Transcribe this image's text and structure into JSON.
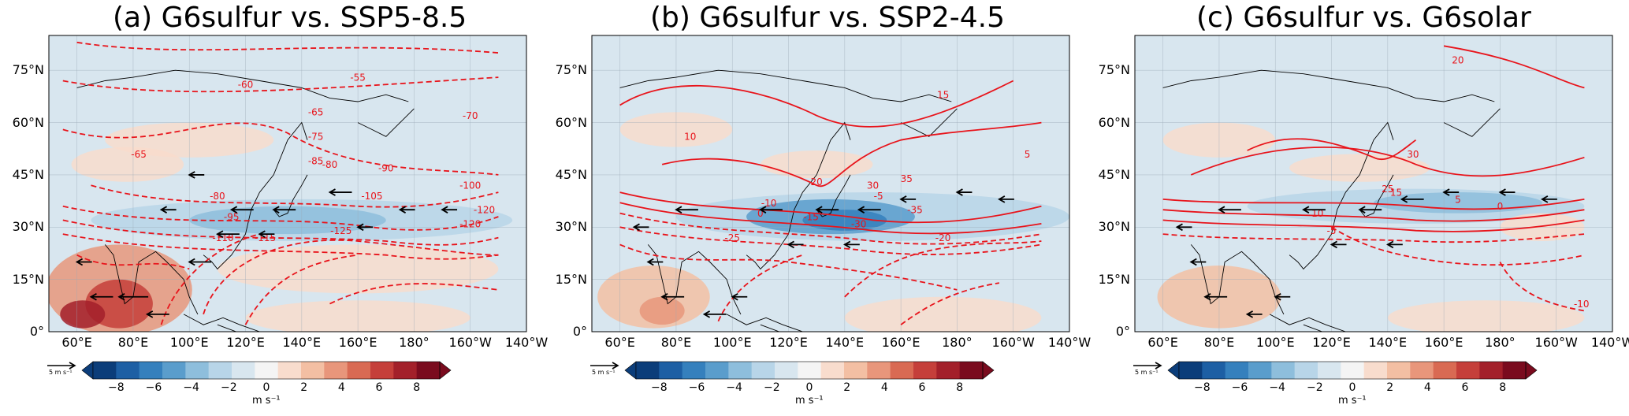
{
  "panels": [
    {
      "id": "a",
      "title": "(a) G6sulfur vs. SSP5-8.5",
      "contour_labels": [
        "-55",
        "-60",
        "-65",
        "-70",
        "-65",
        "-75",
        "-80",
        "-90",
        "-85",
        "-100",
        "-105",
        "-80",
        "-95",
        "-110",
        "-115",
        "-120",
        "-125",
        "-120"
      ]
    },
    {
      "id": "b",
      "title": "(b) G6sulfur vs. SSP2-4.5",
      "contour_labels": [
        "15",
        "10",
        "5",
        "20",
        "30",
        "35",
        "0",
        "-5",
        "-15",
        "-10",
        "-20",
        "-25",
        "-30",
        "-35"
      ]
    },
    {
      "id": "c",
      "title": "(c) G6sulfur vs. G6solar",
      "contour_labels": [
        "20",
        "25",
        "30",
        "15",
        "10",
        "5",
        "0",
        "-5",
        "-10"
      ]
    }
  ],
  "axes": {
    "lat_ticks": [
      "75°N",
      "60°N",
      "45°N",
      "30°N",
      "15°N",
      "0°"
    ],
    "lon_ticks": [
      "60°E",
      "80°E",
      "100°E",
      "120°E",
      "140°E",
      "160°E",
      "180°",
      "160°W",
      "140°W"
    ]
  },
  "colorbar": {
    "ticks": [
      "−8",
      "−6",
      "−4",
      "−2",
      "0",
      "2",
      "4",
      "6",
      "8"
    ],
    "unit": "m s⁻¹",
    "vector_ref": "5 m s⁻¹",
    "colors": [
      "#0b3d7a",
      "#1d5fa4",
      "#3580bd",
      "#5a9dcc",
      "#8ebedc",
      "#b8d5e8",
      "#d8e6ef",
      "#f4f4f4",
      "#f8dccd",
      "#f3bfa3",
      "#e8967b",
      "#d96a53",
      "#c53f3a",
      "#a3202a",
      "#7a0b1e"
    ]
  }
}
